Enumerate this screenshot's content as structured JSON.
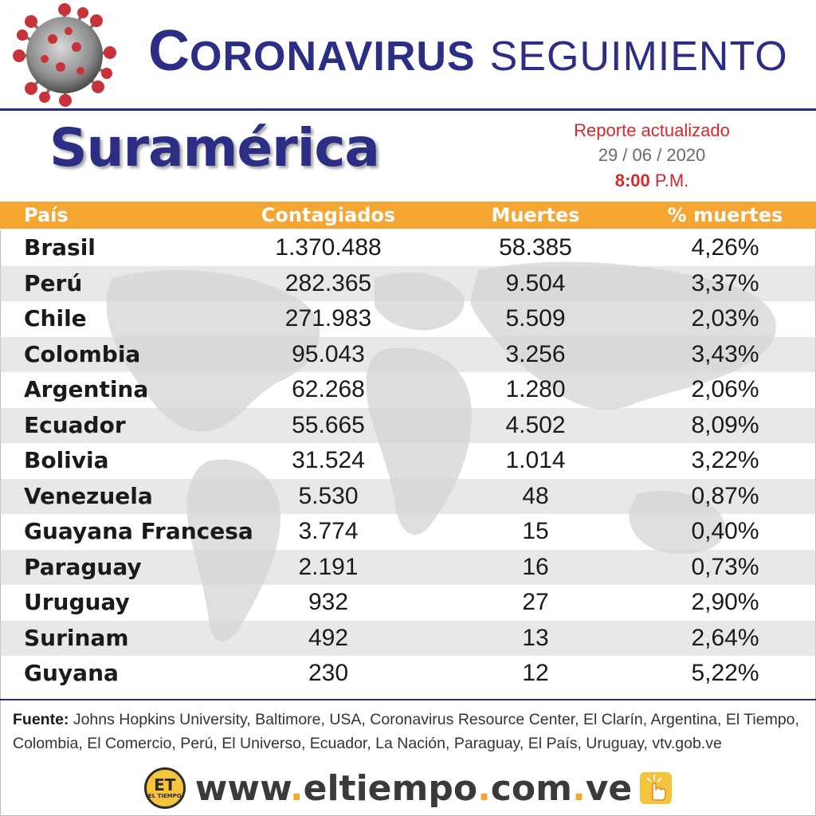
{
  "header": {
    "title_cap": "C",
    "title_rest": "ORONAVIRUS",
    "title_light": "SEGUIMIENTO"
  },
  "subheader": {
    "region": "Suramérica",
    "report_label": "Reporte actualizado",
    "report_date": "29 / 06 / 2020",
    "report_time_bold": "8:00",
    "report_time_suffix": "P.M."
  },
  "table": {
    "columns": [
      "País",
      "Contagiados",
      "Muertes",
      "% muertes"
    ],
    "rows": [
      {
        "country": "Brasil",
        "cases": "1.370.488",
        "deaths": "58.385",
        "pct": "4,26%"
      },
      {
        "country": "Perú",
        "cases": "282.365",
        "deaths": "9.504",
        "pct": "3,37%"
      },
      {
        "country": "Chile",
        "cases": "271.983",
        "deaths": "5.509",
        "pct": "2,03%"
      },
      {
        "country": "Colombia",
        "cases": "95.043",
        "deaths": "3.256",
        "pct": "3,43%"
      },
      {
        "country": "Argentina",
        "cases": "62.268",
        "deaths": "1.280",
        "pct": "2,06%"
      },
      {
        "country": "Ecuador",
        "cases": "55.665",
        "deaths": "4.502",
        "pct": "8,09%"
      },
      {
        "country": "Bolivia",
        "cases": "31.524",
        "deaths": "1.014",
        "pct": "3,22%"
      },
      {
        "country": "Venezuela",
        "cases": "5.530",
        "deaths": "48",
        "pct": "0,87%"
      },
      {
        "country": "Guayana Francesa",
        "cases": "3.774",
        "deaths": "15",
        "pct": "0,40%"
      },
      {
        "country": "Paraguay",
        "cases": "2.191",
        "deaths": "16",
        "pct": "0,73%"
      },
      {
        "country": "Uruguay",
        "cases": "932",
        "deaths": "27",
        "pct": "2,90%"
      },
      {
        "country": "Surinam",
        "cases": "492",
        "deaths": "13",
        "pct": "2,64%"
      },
      {
        "country": "Guyana",
        "cases": "230",
        "deaths": "12",
        "pct": "5,22%"
      }
    ]
  },
  "footer": {
    "source_label": "Fuente:",
    "source_text": " Johns Hopkins University, Baltimore, USA, Coronavirus Resource Center,  El Clarín, Argentina, El Tiempo, Colombia, El Comercio, Perú, El Universo, Ecuador, La Nación, Paraguay, El País, Uruguay, vtv.gob.ve",
    "logo_text": "ET",
    "logo_subtext": "EL TIEMPO",
    "url_parts": [
      "www",
      ".",
      "eltiempo",
      ".",
      "com",
      ".",
      "ve"
    ]
  },
  "icons": [
    "coronavirus-icon",
    "world-map-icon",
    "el-tiempo-logo-icon",
    "click-hand-icon"
  ],
  "colors": {
    "title_blue": "#2c2e86",
    "header_orange": "#f5a532",
    "report_red": "#d3282e",
    "logo_yellow": "#f6c33c"
  }
}
